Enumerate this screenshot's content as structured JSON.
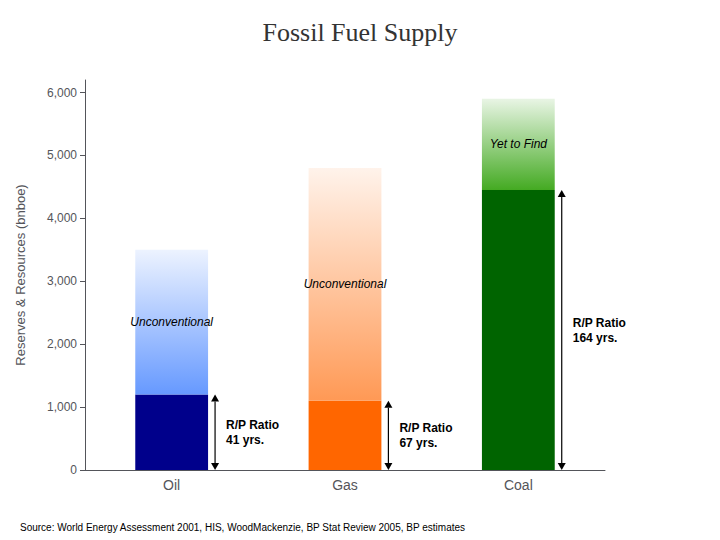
{
  "chart_data": {
    "type": "bar",
    "stacked": true,
    "title": "Fossil Fuel Supply",
    "ylabel": "Reserves & Resources (bnboe)",
    "categories": [
      "Oil",
      "Gas",
      "Coal"
    ],
    "series": [
      {
        "colors": [
          "#00008B",
          "#FF6600",
          "#006400"
        ],
        "values": [
          1200,
          1100,
          4450
        ],
        "annotations": [
          "R/P Ratio\n41 yrs.",
          "R/P Ratio\n67 yrs.",
          "R/P Ratio\n164 yrs."
        ]
      },
      {
        "colors": [
          "#6699FF",
          "#FF9955",
          "#44AA22"
        ],
        "values": [
          2300,
          3700,
          1450
        ],
        "annotations": [
          "Unconventional",
          "Unconventional",
          "Yet to Find"
        ]
      }
    ],
    "ylim": [
      0,
      6200
    ],
    "yticks": [
      0,
      {
        "value": 1000,
        "label": "1,000"
      },
      {
        "value": 2000,
        "label": "2,000"
      },
      {
        "value": 3000,
        "label": "3,000"
      },
      {
        "value": 4000,
        "label": "4,000"
      },
      {
        "value": 5000,
        "label": "5,000"
      },
      {
        "value": 6000,
        "label": "6,000"
      }
    ],
    "grid": false,
    "source": "Source: World Energy Assessment 2001, HIS, WoodMackenzie, BP Stat Review 2005, BP estimates"
  }
}
